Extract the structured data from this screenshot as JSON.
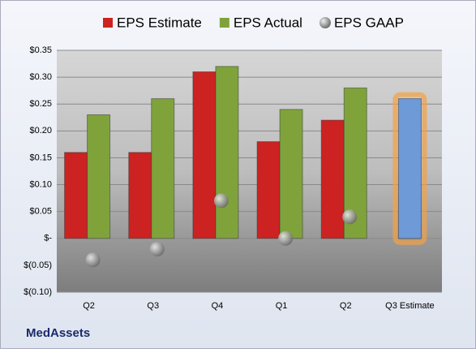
{
  "chart_data": {
    "type": "bar",
    "categories": [
      "Q2",
      "Q3",
      "Q4",
      "Q1",
      "Q2",
      "Q3 Estimate"
    ],
    "series": [
      {
        "name": "EPS Estimate",
        "color": "#cc2222",
        "values": [
          0.16,
          0.16,
          0.31,
          0.18,
          0.22,
          0.26
        ]
      },
      {
        "name": "EPS Actual",
        "color": "#7fa33a",
        "values": [
          0.23,
          0.26,
          0.32,
          0.24,
          0.28,
          null
        ]
      },
      {
        "name": "EPS GAAP",
        "color": "#9a9a9a",
        "values": [
          -0.04,
          -0.02,
          0.07,
          0.0,
          0.04,
          null
        ]
      }
    ],
    "highlight_color": "#6f9ad8",
    "ylim": [
      -0.1,
      0.35
    ],
    "yticks": [
      {
        "value": -0.1,
        "label": "$(0.10)"
      },
      {
        "value": -0.05,
        "label": "$(0.05)"
      },
      {
        "value": 0,
        "label": "$-"
      },
      {
        "value": 0.05,
        "label": "$0.05"
      },
      {
        "value": 0.1,
        "label": "$0.10"
      },
      {
        "value": 0.15,
        "label": "$0.15"
      },
      {
        "value": 0.2,
        "label": "$0.20"
      },
      {
        "value": 0.25,
        "label": "$0.25"
      },
      {
        "value": 0.3,
        "label": "$0.30"
      },
      {
        "value": 0.35,
        "label": "$0.35"
      }
    ],
    "grid": true,
    "footer": "MedAssets"
  }
}
